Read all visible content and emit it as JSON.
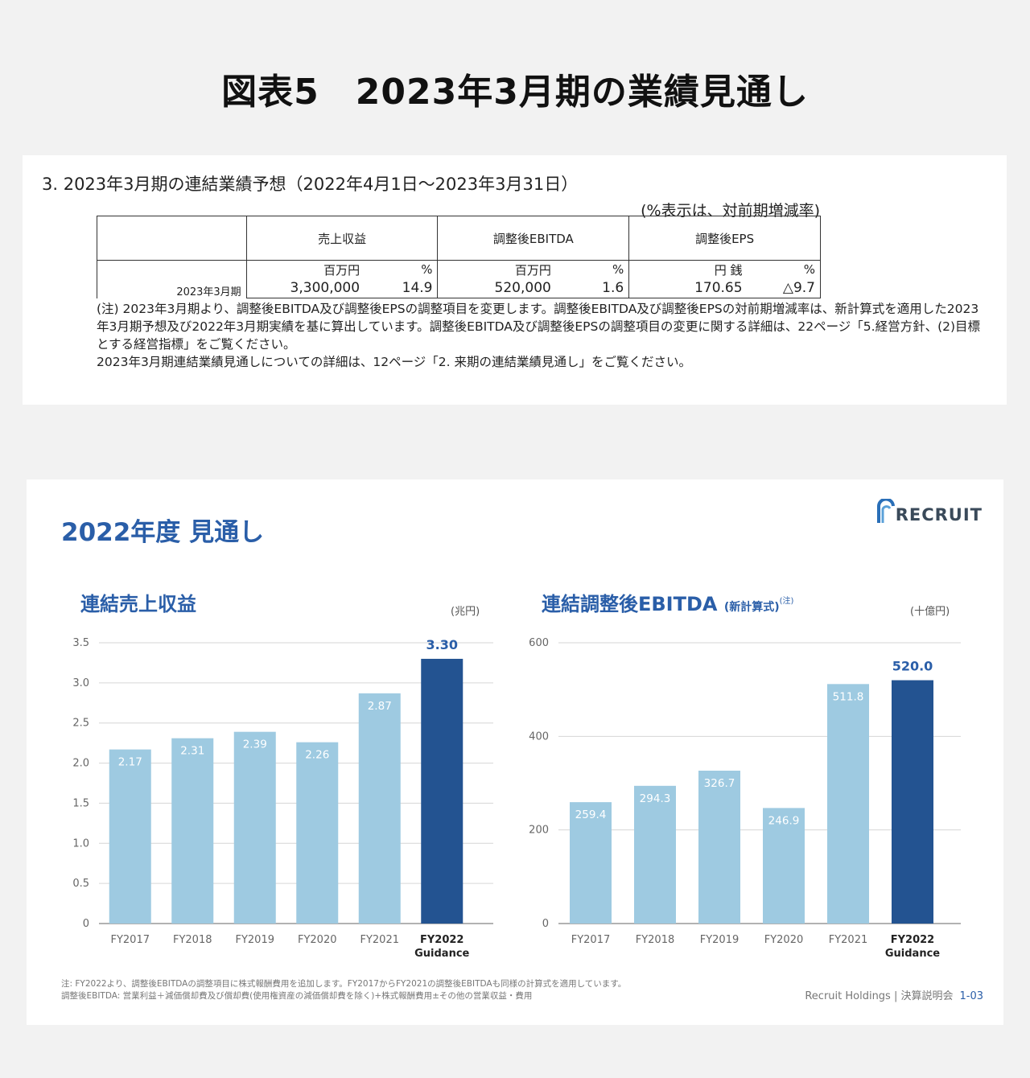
{
  "title": "図表5　2023年3月期の業績見通し",
  "document": {
    "heading": "3.  2023年3月期の連結業績予想（2022年4月1日～2023年3月31日）",
    "unit_note": "(%表示は、対前期増減率)",
    "columns": [
      "売上収益",
      "調整後EBITDA",
      "調整後EPS"
    ],
    "units": [
      "百万円",
      "%",
      "百万円",
      "%",
      "円 銭",
      "%"
    ],
    "row_label": "2023年3月期",
    "values": [
      "3,300,000",
      "14.9",
      "520,000",
      "1.6",
      "170.65",
      "△9.7"
    ],
    "notes": [
      "(注) 2023年3月期より、調整後EBITDA及び調整後EPSの調整項目を変更します。調整後EBITDA及び調整後EPSの対前期増減率は、新計算式を適用した2023年3月期予想及び2022年3月期実績を基に算出しています。調整後EBITDA及び調整後EPSの調整項目の変更に関する詳細は、22ページ「5.経営方針、(2)目標とする経営指標」をご覧ください。",
      "2023年3月期連結業績見通しについての詳細は、12ページ「2. 来期の連結業績見通し」をご覧ください。"
    ]
  },
  "slide": {
    "title": "2022年度 見通し",
    "logo_text": "RECRUIT",
    "left_title": "連結売上収益",
    "right_title": "連結調整後EBITDA",
    "right_title_sub": "(新計算式)",
    "right_title_note": "(注)",
    "footnotes": [
      "注: FY2022より、調整後EBITDAの調整項目に株式報酬費用を追加します。FY2017からFY2021の調整後EBITDAも同様の計算式を適用しています。",
      "調整後EBITDA: 営業利益＋減価償却費及び償却費(使用権資産の減価償却費を除く)+株式報酬費用±その他の営業収益・費用"
    ],
    "footer_source": "Recruit Holdings | 決算説明会",
    "footer_page": "1-03"
  },
  "colors": {
    "light_bar": "#9ecae1",
    "dark_bar": "#235391",
    "accent": "#2a5ea8"
  },
  "chart_data": [
    {
      "type": "bar",
      "title": "連結売上収益",
      "unit": "(兆円)",
      "categories": [
        "FY2017",
        "FY2018",
        "FY2019",
        "FY2020",
        "FY2021",
        "FY2022"
      ],
      "category_sublabels": [
        "",
        "",
        "",
        "",
        "",
        "Guidance"
      ],
      "values": [
        2.17,
        2.31,
        2.39,
        2.26,
        2.87,
        3.3
      ],
      "value_labels": [
        "2.17",
        "2.31",
        "2.39",
        "2.26",
        "2.87",
        "3.30"
      ],
      "ylim": [
        0,
        3.5
      ],
      "yticks": [
        "0",
        "0.5",
        "1.0",
        "1.5",
        "2.0",
        "2.5",
        "3.0",
        "3.5"
      ],
      "highlight_index": 5,
      "grid": true
    },
    {
      "type": "bar",
      "title": "連結調整後EBITDA (新計算式)",
      "unit": "(十億円)",
      "categories": [
        "FY2017",
        "FY2018",
        "FY2019",
        "FY2020",
        "FY2021",
        "FY2022"
      ],
      "category_sublabels": [
        "",
        "",
        "",
        "",
        "",
        "Guidance"
      ],
      "values": [
        259.4,
        294.3,
        326.7,
        246.9,
        511.8,
        520.0
      ],
      "value_labels": [
        "259.4",
        "294.3",
        "326.7",
        "246.9",
        "511.8",
        "520.0"
      ],
      "ylim": [
        0,
        600
      ],
      "yticks": [
        "0",
        "200",
        "400",
        "600"
      ],
      "highlight_index": 5,
      "grid": true
    }
  ]
}
